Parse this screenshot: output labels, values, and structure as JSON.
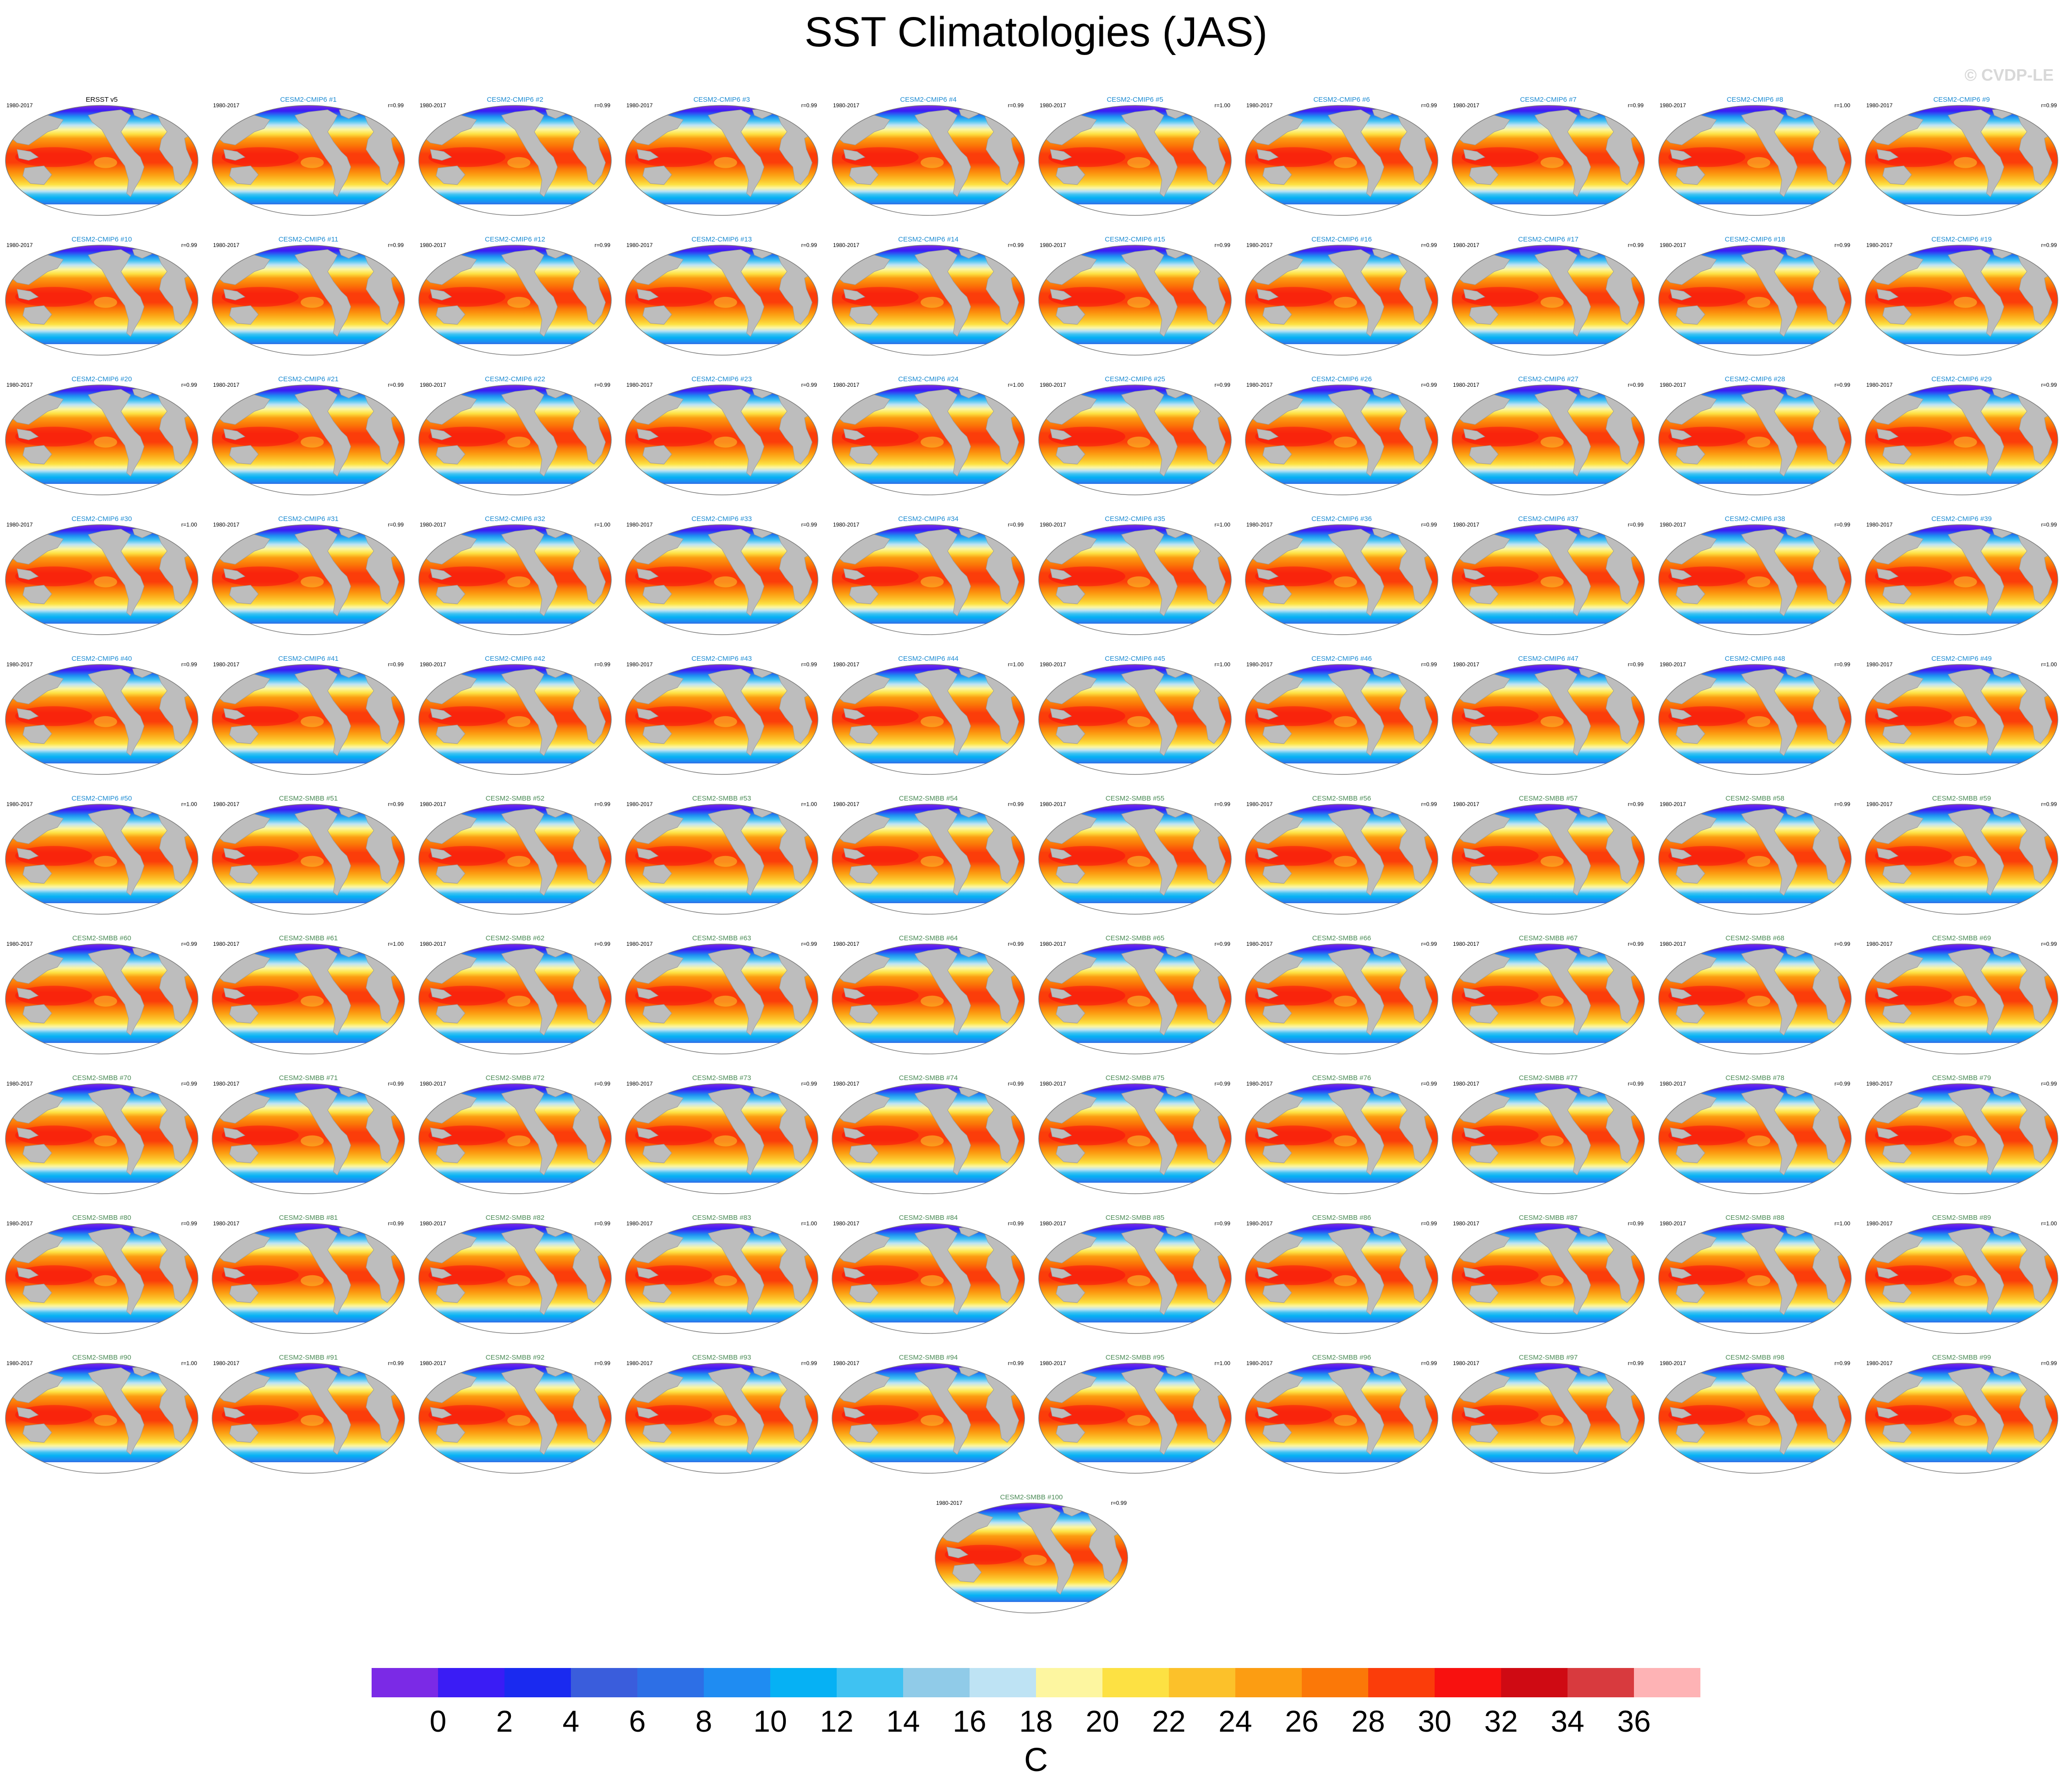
{
  "title": "SST Climatologies (JAS)",
  "watermark": "© CVDP-LE",
  "chart_data": {
    "type": "heatmap",
    "title": "SST Climatologies (JAS)",
    "variable": "SST",
    "units": "C",
    "season": "JAS",
    "projection": "global (Robinson-style ellipse)",
    "colorbar": {
      "label": "C",
      "ticks": [
        0,
        2,
        4,
        6,
        8,
        10,
        12,
        14,
        16,
        18,
        20,
        22,
        24,
        26,
        28,
        30,
        32,
        34,
        36
      ],
      "colors": [
        "#7b2ae6",
        "#3a1cf5",
        "#1a2af0",
        "#3a5ddc",
        "#2d6fe6",
        "#1f8cf2",
        "#06b1f4",
        "#3fc2f2",
        "#90cbe8",
        "#bee3f4",
        "#fdf6a0",
        "#fde143",
        "#fcc12a",
        "#fc9d12",
        "#fb7808",
        "#fb3d0a",
        "#f8110f",
        "#cf0a13",
        "#d83a3e",
        "#feb3b5"
      ],
      "land_color": "#bdbdbd"
    },
    "panel_colors": {
      "obs_title": "#000000",
      "cmip6_title": "#1d8bd2",
      "smbb_title": "#4a8a55",
      "side_label": "#000000"
    },
    "panels": [
      {
        "title": "ERSST v5",
        "period": "1980-2017",
        "r": ""
      },
      {
        "title": "CESM2-CMIP6 #1",
        "period": "1980-2017",
        "r": "r=0.99"
      },
      {
        "title": "CESM2-CMIP6 #2",
        "period": "1980-2017",
        "r": "r=0.99"
      },
      {
        "title": "CESM2-CMIP6 #3",
        "period": "1980-2017",
        "r": "r=0.99"
      },
      {
        "title": "CESM2-CMIP6 #4",
        "period": "1980-2017",
        "r": "r=0.99"
      },
      {
        "title": "CESM2-CMIP6 #5",
        "period": "1980-2017",
        "r": "r=1.00"
      },
      {
        "title": "CESM2-CMIP6 #6",
        "period": "1980-2017",
        "r": "r=0.99"
      },
      {
        "title": "CESM2-CMIP6 #7",
        "period": "1980-2017",
        "r": "r=0.99"
      },
      {
        "title": "CESM2-CMIP6 #8",
        "period": "1980-2017",
        "r": "r=1.00"
      },
      {
        "title": "CESM2-CMIP6 #9",
        "period": "1980-2017",
        "r": "r=0.99"
      },
      {
        "title": "CESM2-CMIP6 #10",
        "period": "1980-2017",
        "r": "r=0.99"
      },
      {
        "title": "CESM2-CMIP6 #11",
        "period": "1980-2017",
        "r": "r=0.99"
      },
      {
        "title": "CESM2-CMIP6 #12",
        "period": "1980-2017",
        "r": "r=0.99"
      },
      {
        "title": "CESM2-CMIP6 #13",
        "period": "1980-2017",
        "r": "r=0.99"
      },
      {
        "title": "CESM2-CMIP6 #14",
        "period": "1980-2017",
        "r": "r=0.99"
      },
      {
        "title": "CESM2-CMIP6 #15",
        "period": "1980-2017",
        "r": "r=0.99"
      },
      {
        "title": "CESM2-CMIP6 #16",
        "period": "1980-2017",
        "r": "r=0.99"
      },
      {
        "title": "CESM2-CMIP6 #17",
        "period": "1980-2017",
        "r": "r=0.99"
      },
      {
        "title": "CESM2-CMIP6 #18",
        "period": "1980-2017",
        "r": "r=0.99"
      },
      {
        "title": "CESM2-CMIP6 #19",
        "period": "1980-2017",
        "r": "r=0.99"
      },
      {
        "title": "CESM2-CMIP6 #20",
        "period": "1980-2017",
        "r": "r=0.99"
      },
      {
        "title": "CESM2-CMIP6 #21",
        "period": "1980-2017",
        "r": "r=0.99"
      },
      {
        "title": "CESM2-CMIP6 #22",
        "period": "1980-2017",
        "r": "r=0.99"
      },
      {
        "title": "CESM2-CMIP6 #23",
        "period": "1980-2017",
        "r": "r=0.99"
      },
      {
        "title": "CESM2-CMIP6 #24",
        "period": "1980-2017",
        "r": "r=1.00"
      },
      {
        "title": "CESM2-CMIP6 #25",
        "period": "1980-2017",
        "r": "r=0.99"
      },
      {
        "title": "CESM2-CMIP6 #26",
        "period": "1980-2017",
        "r": "r=0.99"
      },
      {
        "title": "CESM2-CMIP6 #27",
        "period": "1980-2017",
        "r": "r=0.99"
      },
      {
        "title": "CESM2-CMIP6 #28",
        "period": "1980-2017",
        "r": "r=0.99"
      },
      {
        "title": "CESM2-CMIP6 #29",
        "period": "1980-2017",
        "r": "r=0.99"
      },
      {
        "title": "CESM2-CMIP6 #30",
        "period": "1980-2017",
        "r": "r=1.00"
      },
      {
        "title": "CESM2-CMIP6 #31",
        "period": "1980-2017",
        "r": "r=0.99"
      },
      {
        "title": "CESM2-CMIP6 #32",
        "period": "1980-2017",
        "r": "r=1.00"
      },
      {
        "title": "CESM2-CMIP6 #33",
        "period": "1980-2017",
        "r": "r=0.99"
      },
      {
        "title": "CESM2-CMIP6 #34",
        "period": "1980-2017",
        "r": "r=0.99"
      },
      {
        "title": "CESM2-CMIP6 #35",
        "period": "1980-2017",
        "r": "r=1.00"
      },
      {
        "title": "CESM2-CMIP6 #36",
        "period": "1980-2017",
        "r": "r=0.99"
      },
      {
        "title": "CESM2-CMIP6 #37",
        "period": "1980-2017",
        "r": "r=0.99"
      },
      {
        "title": "CESM2-CMIP6 #38",
        "period": "1980-2017",
        "r": "r=0.99"
      },
      {
        "title": "CESM2-CMIP6 #39",
        "period": "1980-2017",
        "r": "r=0.99"
      },
      {
        "title": "CESM2-CMIP6 #40",
        "period": "1980-2017",
        "r": "r=0.99"
      },
      {
        "title": "CESM2-CMIP6 #41",
        "period": "1980-2017",
        "r": "r=0.99"
      },
      {
        "title": "CESM2-CMIP6 #42",
        "period": "1980-2017",
        "r": "r=0.99"
      },
      {
        "title": "CESM2-CMIP6 #43",
        "period": "1980-2017",
        "r": "r=0.99"
      },
      {
        "title": "CESM2-CMIP6 #44",
        "period": "1980-2017",
        "r": "r=1.00"
      },
      {
        "title": "CESM2-CMIP6 #45",
        "period": "1980-2017",
        "r": "r=1.00"
      },
      {
        "title": "CESM2-CMIP6 #46",
        "period": "1980-2017",
        "r": "r=0.99"
      },
      {
        "title": "CESM2-CMIP6 #47",
        "period": "1980-2017",
        "r": "r=0.99"
      },
      {
        "title": "CESM2-CMIP6 #48",
        "period": "1980-2017",
        "r": "r=0.99"
      },
      {
        "title": "CESM2-CMIP6 #49",
        "period": "1980-2017",
        "r": "r=1.00"
      },
      {
        "title": "CESM2-CMIP6 #50",
        "period": "1980-2017",
        "r": "r=1.00"
      },
      {
        "title": "CESM2-SMBB #51",
        "period": "1980-2017",
        "r": "r=0.99"
      },
      {
        "title": "CESM2-SMBB #52",
        "period": "1980-2017",
        "r": "r=0.99"
      },
      {
        "title": "CESM2-SMBB #53",
        "period": "1980-2017",
        "r": "r=1.00"
      },
      {
        "title": "CESM2-SMBB #54",
        "period": "1980-2017",
        "r": "r=0.99"
      },
      {
        "title": "CESM2-SMBB #55",
        "period": "1980-2017",
        "r": "r=0.99"
      },
      {
        "title": "CESM2-SMBB #56",
        "period": "1980-2017",
        "r": "r=0.99"
      },
      {
        "title": "CESM2-SMBB #57",
        "period": "1980-2017",
        "r": "r=0.99"
      },
      {
        "title": "CESM2-SMBB #58",
        "period": "1980-2017",
        "r": "r=0.99"
      },
      {
        "title": "CESM2-SMBB #59",
        "period": "1980-2017",
        "r": "r=0.99"
      },
      {
        "title": "CESM2-SMBB #60",
        "period": "1980-2017",
        "r": "r=0.99"
      },
      {
        "title": "CESM2-SMBB #61",
        "period": "1980-2017",
        "r": "r=1.00"
      },
      {
        "title": "CESM2-SMBB #62",
        "period": "1980-2017",
        "r": "r=0.99"
      },
      {
        "title": "CESM2-SMBB #63",
        "period": "1980-2017",
        "r": "r=0.99"
      },
      {
        "title": "CESM2-SMBB #64",
        "period": "1980-2017",
        "r": "r=0.99"
      },
      {
        "title": "CESM2-SMBB #65",
        "period": "1980-2017",
        "r": "r=0.99"
      },
      {
        "title": "CESM2-SMBB #66",
        "period": "1980-2017",
        "r": "r=0.99"
      },
      {
        "title": "CESM2-SMBB #67",
        "period": "1980-2017",
        "r": "r=0.99"
      },
      {
        "title": "CESM2-SMBB #68",
        "period": "1980-2017",
        "r": "r=0.99"
      },
      {
        "title": "CESM2-SMBB #69",
        "period": "1980-2017",
        "r": "r=0.99"
      },
      {
        "title": "CESM2-SMBB #70",
        "period": "1980-2017",
        "r": "r=0.99"
      },
      {
        "title": "CESM2-SMBB #71",
        "period": "1980-2017",
        "r": "r=0.99"
      },
      {
        "title": "CESM2-SMBB #72",
        "period": "1980-2017",
        "r": "r=0.99"
      },
      {
        "title": "CESM2-SMBB #73",
        "period": "1980-2017",
        "r": "r=0.99"
      },
      {
        "title": "CESM2-SMBB #74",
        "period": "1980-2017",
        "r": "r=0.99"
      },
      {
        "title": "CESM2-SMBB #75",
        "period": "1980-2017",
        "r": "r=0.99"
      },
      {
        "title": "CESM2-SMBB #76",
        "period": "1980-2017",
        "r": "r=0.99"
      },
      {
        "title": "CESM2-SMBB #77",
        "period": "1980-2017",
        "r": "r=0.99"
      },
      {
        "title": "CESM2-SMBB #78",
        "period": "1980-2017",
        "r": "r=0.99"
      },
      {
        "title": "CESM2-SMBB #79",
        "period": "1980-2017",
        "r": "r=0.99"
      },
      {
        "title": "CESM2-SMBB #80",
        "period": "1980-2017",
        "r": "r=0.99"
      },
      {
        "title": "CESM2-SMBB #81",
        "period": "1980-2017",
        "r": "r=0.99"
      },
      {
        "title": "CESM2-SMBB #82",
        "period": "1980-2017",
        "r": "r=0.99"
      },
      {
        "title": "CESM2-SMBB #83",
        "period": "1980-2017",
        "r": "r=1.00"
      },
      {
        "title": "CESM2-SMBB #84",
        "period": "1980-2017",
        "r": "r=0.99"
      },
      {
        "title": "CESM2-SMBB #85",
        "period": "1980-2017",
        "r": "r=0.99"
      },
      {
        "title": "CESM2-SMBB #86",
        "period": "1980-2017",
        "r": "r=0.99"
      },
      {
        "title": "CESM2-SMBB #87",
        "period": "1980-2017",
        "r": "r=0.99"
      },
      {
        "title": "CESM2-SMBB #88",
        "period": "1980-2017",
        "r": "r=1.00"
      },
      {
        "title": "CESM2-SMBB #89",
        "period": "1980-2017",
        "r": "r=1.00"
      },
      {
        "title": "CESM2-SMBB #90",
        "period": "1980-2017",
        "r": "r=1.00"
      },
      {
        "title": "CESM2-SMBB #91",
        "period": "1980-2017",
        "r": "r=0.99"
      },
      {
        "title": "CESM2-SMBB #92",
        "period": "1980-2017",
        "r": "r=0.99"
      },
      {
        "title": "CESM2-SMBB #93",
        "period": "1980-2017",
        "r": "r=0.99"
      },
      {
        "title": "CESM2-SMBB #94",
        "period": "1980-2017",
        "r": "r=0.99"
      },
      {
        "title": "CESM2-SMBB #95",
        "period": "1980-2017",
        "r": "r=1.00"
      },
      {
        "title": "CESM2-SMBB #96",
        "period": "1980-2017",
        "r": "r=0.99"
      },
      {
        "title": "CESM2-SMBB #97",
        "period": "1980-2017",
        "r": "r=0.99"
      },
      {
        "title": "CESM2-SMBB #98",
        "period": "1980-2017",
        "r": "r=0.99"
      },
      {
        "title": "CESM2-SMBB #99",
        "period": "1980-2017",
        "r": "r=0.99"
      },
      {
        "title": "CESM2-SMBB #100",
        "period": "1980-2017",
        "r": "r=0.99"
      }
    ]
  }
}
